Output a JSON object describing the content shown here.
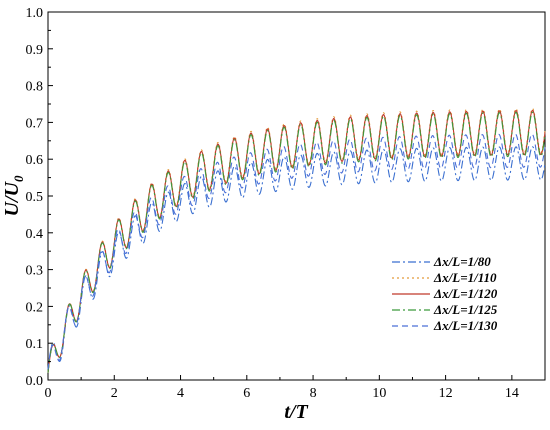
{
  "chart_data": {
    "type": "line",
    "xlabel": "t/T",
    "ylabel_main": "U/U",
    "ylabel_sub": "0",
    "xlim": [
      0,
      15
    ],
    "ylim": [
      0,
      1.0
    ],
    "x_ticks": [
      "0",
      "2",
      "4",
      "6",
      "8",
      "10",
      "12",
      "14"
    ],
    "y_ticks": [
      "0.0",
      "0.1",
      "0.2",
      "0.3",
      "0.4",
      "0.5",
      "0.6",
      "0.7",
      "0.8",
      "0.9",
      "1.0"
    ],
    "grid": false,
    "legend_position": "right-middle",
    "series": [
      {
        "name": "Δx/L=1/80",
        "color": "#3a6fd0",
        "dash": "8,3,2,3",
        "approx": {
          "amp0": 0.05,
          "ampInf": 0.045,
          "mean0": 0.02,
          "meanInf": 0.59,
          "tau": 2.4,
          "period": 0.5,
          "phase": 0.0
        }
      },
      {
        "name": "Δx/L=1/110",
        "color": "#e39b3b",
        "dash": "2,3",
        "approx": {
          "amp0": 0.04,
          "ampInf": 0.06,
          "mean0": 0.02,
          "meanInf": 0.68,
          "tau": 2.6,
          "period": 0.5,
          "phase": 0.0
        }
      },
      {
        "name": "Δx/L=1/120",
        "color": "#c0392b",
        "dash": "",
        "approx": {
          "amp0": 0.04,
          "ampInf": 0.06,
          "mean0": 0.02,
          "meanInf": 0.675,
          "tau": 2.6,
          "period": 0.5,
          "phase": 0.0
        }
      },
      {
        "name": "Δx/L=1/125",
        "color": "#3c9a3c",
        "dash": "8,3,2,3",
        "approx": {
          "amp0": 0.04,
          "ampInf": 0.06,
          "mean0": 0.02,
          "meanInf": 0.67,
          "tau": 2.6,
          "period": 0.5,
          "phase": 0.0
        }
      },
      {
        "name": "Δx/L=1/130",
        "color": "#4b6fd8",
        "dash": "6,4",
        "approx": {
          "amp0": 0.045,
          "ampInf": 0.045,
          "mean0": 0.02,
          "meanInf": 0.625,
          "tau": 2.5,
          "period": 0.5,
          "phase": 0.02
        }
      }
    ]
  }
}
